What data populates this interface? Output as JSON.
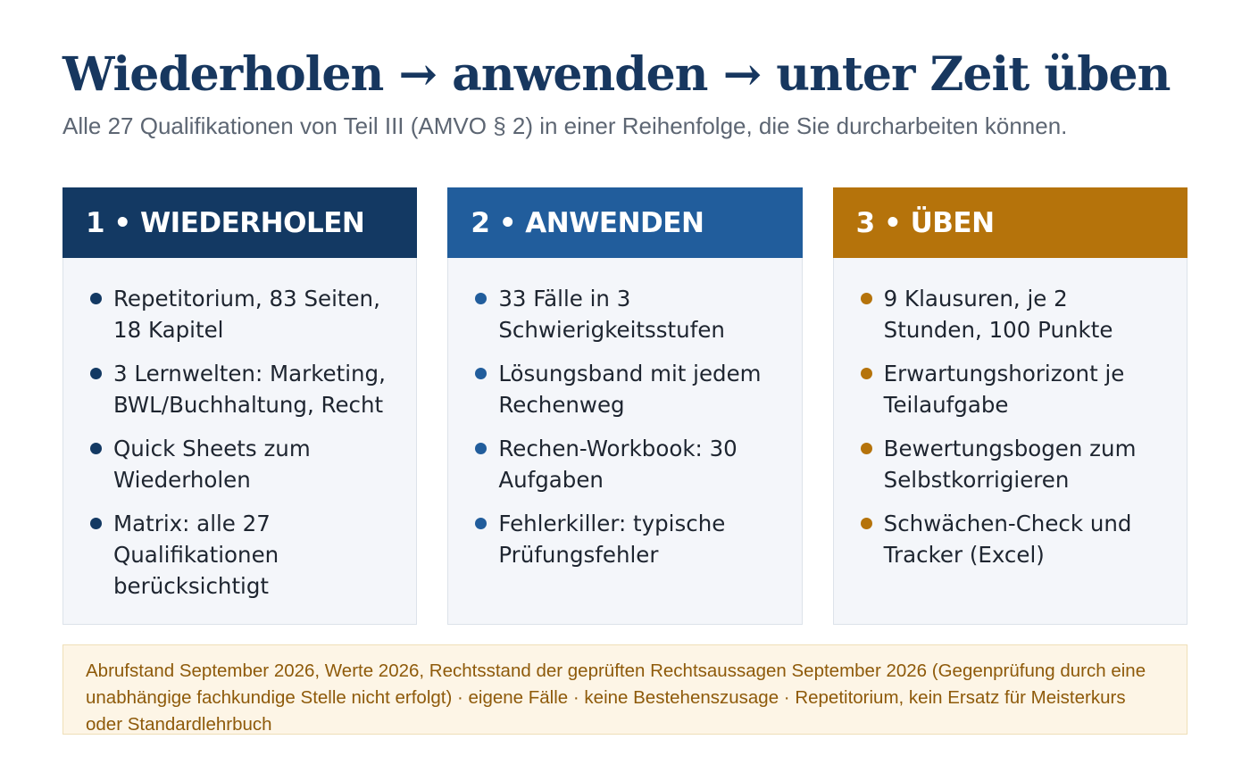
{
  "title": "Wiederholen → anwenden → unter Zeit üben",
  "subtitle": "Alle 27 Qualifikationen von Teil III (AMVO § 2) in einer Reihenfolge, die Sie durcharbeiten können.",
  "colors": {
    "title": "#17375f",
    "step1": "#133963",
    "step2": "#215d9c",
    "step3": "#b5730b",
    "note_text": "#8e5a0a",
    "note_bg": "#fdf5e6"
  },
  "columns": [
    {
      "heading": "1 • WIEDERHOLEN",
      "items": [
        "Repetitorium, 83 Seiten, 18 Kapitel",
        "3 Lernwelten: Marketing, BWL/Buchhaltung, Recht",
        "Quick Sheets zum Wiederholen",
        "Matrix: alle 27 Qualifikationen berücksichtigt"
      ]
    },
    {
      "heading": "2 • ANWENDEN",
      "items": [
        "33 Fälle in 3 Schwierigkeitsstufen",
        "Lösungsband mit jedem Rechenweg",
        "Rechen-Workbook: 30 Aufgaben",
        "Fehlerkiller: typische Prüfungsfehler"
      ]
    },
    {
      "heading": "3 • ÜBEN",
      "items": [
        "9 Klausuren, je 2 Stunden, 100 Punkte",
        "Erwartungshorizont je Teilaufgabe",
        "Bewertungsbogen zum Selbstkorrigieren",
        "Schwächen-Check und Tracker (Excel)"
      ]
    }
  ],
  "note": "Abrufstand September 2026, Werte 2026, Rechtsstand der geprüften Rechtsaussagen September 2026 (Gegenprüfung durch eine unabhängige fachkundige Stelle nicht erfolgt) · eigene Fälle · keine Bestehenszusage · Repetitorium, kein Ersatz für Meisterkurs oder Standardlehrbuch"
}
